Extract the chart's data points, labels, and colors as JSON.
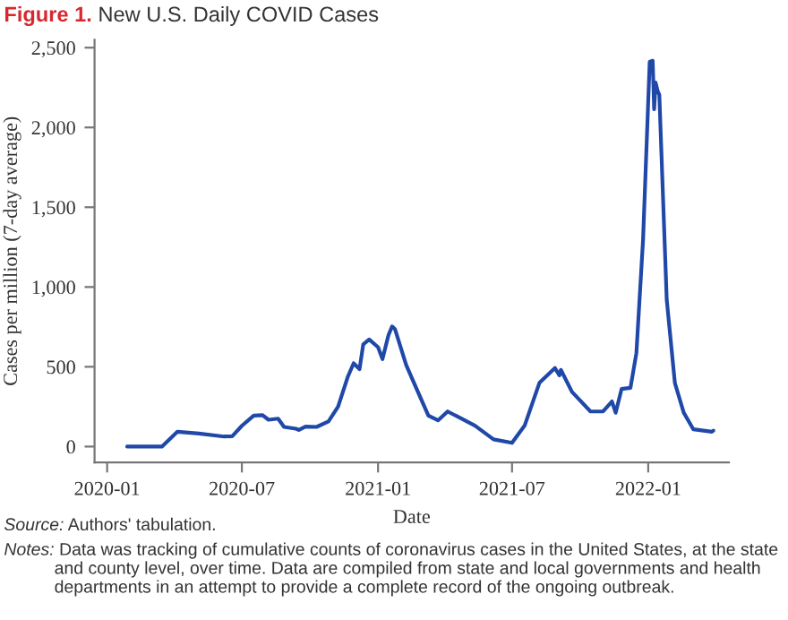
{
  "chart_data": {
    "type": "line",
    "title": "Figure 1. New U.S. Daily COVID Cases",
    "xlabel": "Date",
    "ylabel": "Cases per million (7-day average)",
    "x": [
      "2020-01-28",
      "2020-03-15",
      "2020-04-05",
      "2020-05-04",
      "2020-06-07",
      "2020-06-18",
      "2020-07-01",
      "2020-07-17",
      "2020-07-29",
      "2020-08-06",
      "2020-08-19",
      "2020-08-27",
      "2020-09-12",
      "2020-09-16",
      "2020-09-25",
      "2020-10-10",
      "2020-10-26",
      "2020-11-08",
      "2020-11-21",
      "2020-11-29",
      "2020-12-07",
      "2020-12-12",
      "2020-12-20",
      "2021-01-01",
      "2021-01-07",
      "2021-01-15",
      "2021-01-20",
      "2021-01-24",
      "2021-02-08",
      "2021-02-22",
      "2021-03-10",
      "2021-03-23",
      "2021-04-05",
      "2021-05-12",
      "2021-06-06",
      "2021-07-01",
      "2021-07-18",
      "2021-08-07",
      "2021-08-28",
      "2021-09-03",
      "2021-09-05",
      "2021-09-20",
      "2021-10-15",
      "2021-11-01",
      "2021-11-13",
      "2021-11-18",
      "2021-11-26",
      "2021-12-08",
      "2021-12-16",
      "2021-12-25",
      "2022-01-03",
      "2022-01-07",
      "2022-01-09",
      "2022-01-11",
      "2022-01-14",
      "2022-01-16",
      "2022-01-26",
      "2022-02-06",
      "2022-02-18",
      "2022-03-03",
      "2022-03-28",
      "2022-03-30"
    ],
    "series": [
      {
        "color": "#1f48a8",
        "values": [
          0,
          0,
          93,
          82,
          63,
          65,
          130,
          194,
          197,
          168,
          175,
          123,
          112,
          104,
          125,
          123,
          157,
          250,
          436,
          522,
          485,
          641,
          671,
          623,
          548,
          697,
          753,
          735,
          511,
          362,
          194,
          164,
          220,
          131,
          45,
          23,
          131,
          399,
          492,
          446,
          481,
          343,
          220,
          220,
          283,
          212,
          361,
          368,
          585,
          1293,
          2411,
          2418,
          2114,
          2281,
          2225,
          2206,
          920,
          399,
          212,
          108,
          93,
          100
        ]
      }
    ],
    "xlim": [
      "2019-12-15",
      "2022-04-20"
    ],
    "xticks": [
      {
        "value": "2020-01-01",
        "label": "2020-01"
      },
      {
        "value": "2020-07-01",
        "label": "2020-07"
      },
      {
        "value": "2021-01-01",
        "label": "2021-01"
      },
      {
        "value": "2021-07-01",
        "label": "2021-07"
      },
      {
        "value": "2022-01-01",
        "label": "2022-01"
      }
    ],
    "ylim": [
      -100,
      2550
    ],
    "yticks": [
      {
        "value": 0,
        "label": "0"
      },
      {
        "value": 500,
        "label": "500"
      },
      {
        "value": 1000,
        "label": "1,000"
      },
      {
        "value": 1500,
        "label": "1,500"
      },
      {
        "value": 2000,
        "label": "2,000"
      },
      {
        "value": 2500,
        "label": "2,500"
      }
    ],
    "grid": false,
    "legend": false,
    "marker": "none",
    "line_style": "solid",
    "annotations": [
      "Source: Authors' tabulation.",
      "Notes: Data was tracking of cumulative counts of coronavirus cases in the United States, at the state and county level, over time. Data are compiled from state and local governments and health departments in an attempt to provide a complete record of the ongoing outbreak."
    ]
  }
}
